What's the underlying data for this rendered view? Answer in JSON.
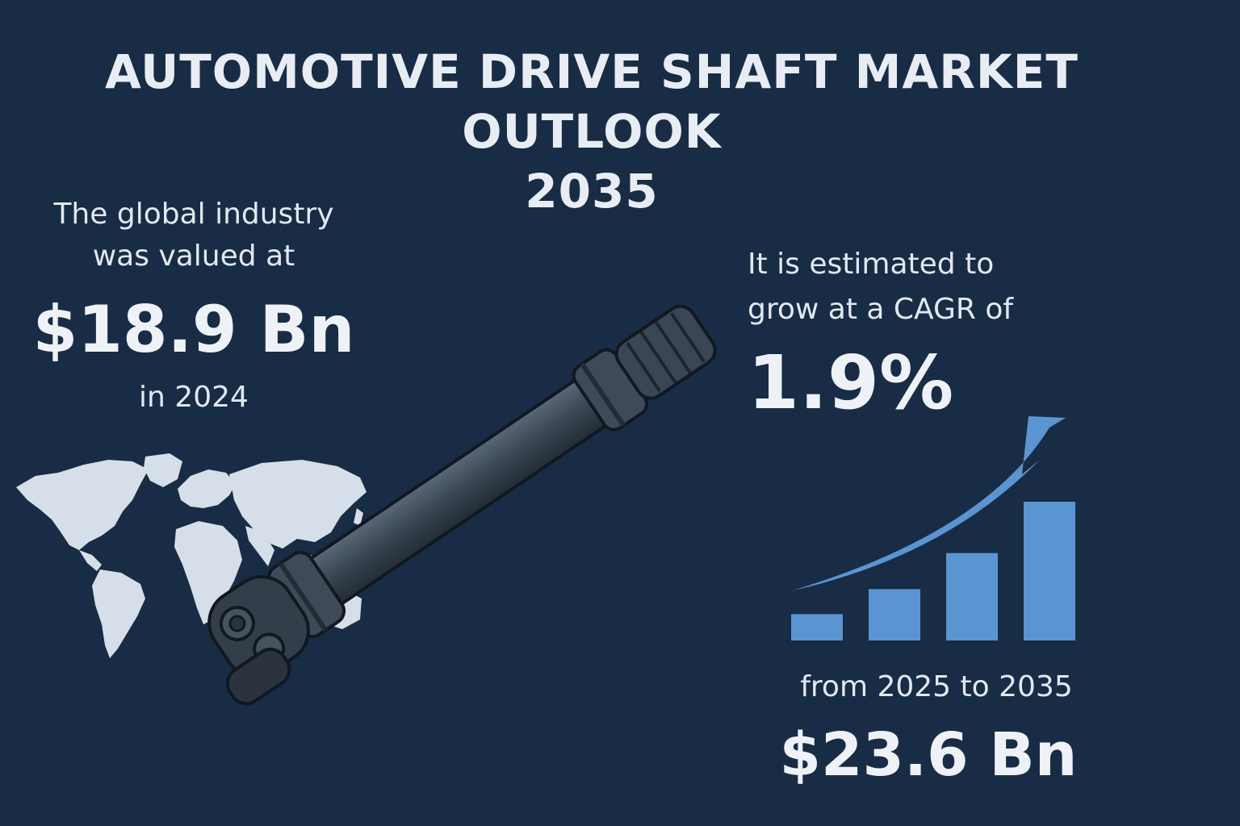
{
  "title": {
    "line1": "AUTOMOTIVE DRIVE SHAFT MARKET OUTLOOK",
    "line2": "2035"
  },
  "left": {
    "intro_line1": "The global industry",
    "intro_line2": "was valued at",
    "value": "$18.9 Bn",
    "year": "in 2024"
  },
  "right": {
    "estimate_line1": "It is estimated to",
    "estimate_line2": "grow at a CAGR of",
    "cagr": "1.9%",
    "period": "from 2025 to 2035",
    "future_value": "$23.6 Bn"
  },
  "colors": {
    "background": "#182c45",
    "text": "#e6ebf1",
    "accent_blue": "#5b95d1",
    "map": "#d6dfe9",
    "shaft": "#3a4653"
  },
  "icons": {
    "map": "world-map-icon",
    "shaft": "drive-shaft-icon",
    "growth": "growth-bar-chart-icon"
  },
  "growth_bars": [
    0.19,
    0.37,
    0.63,
    1.0
  ]
}
